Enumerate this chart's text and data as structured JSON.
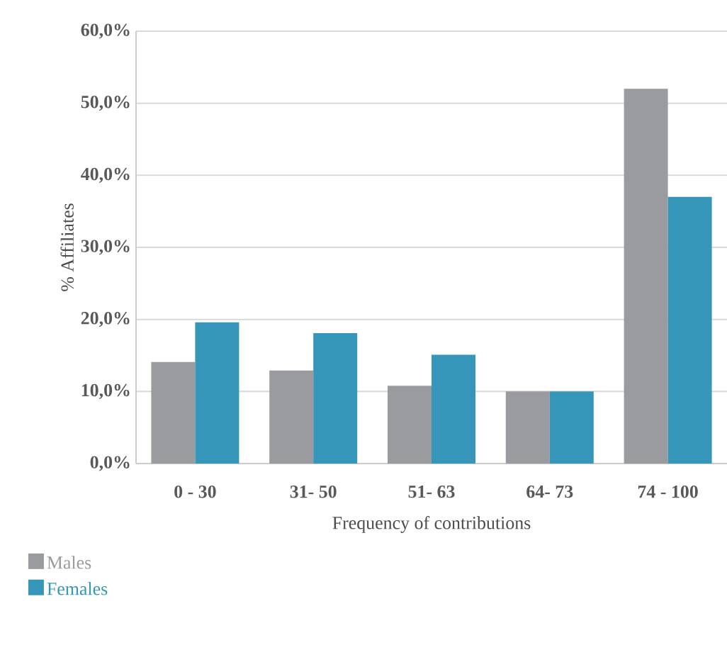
{
  "chart_data": {
    "type": "bar",
    "xlabel": "Frequency of contributions",
    "ylabel": "% Affiliates",
    "categories": [
      "0 - 30",
      "31- 50",
      "51- 63",
      "64- 73",
      "74 - 100"
    ],
    "series": [
      {
        "name": "Males",
        "color": "#9a9b9e",
        "values": [
          14.1,
          12.9,
          10.8,
          10.0,
          52.0
        ]
      },
      {
        "name": "Females",
        "color": "#3596b9",
        "values": [
          19.6,
          18.1,
          15.1,
          10.0,
          37.0
        ]
      }
    ],
    "ylim": [
      0,
      60
    ],
    "yticks": [
      {
        "value": 0,
        "label": "0,0%"
      },
      {
        "value": 10,
        "label": "10,0%"
      },
      {
        "value": 20,
        "label": "20,0%"
      },
      {
        "value": 30,
        "label": "30,0%"
      },
      {
        "value": 40,
        "label": "40,0%"
      },
      {
        "value": 50,
        "label": "50,0%"
      },
      {
        "value": 60,
        "label": "60,0%"
      }
    ],
    "grid": "y",
    "legend": "bottom left"
  }
}
